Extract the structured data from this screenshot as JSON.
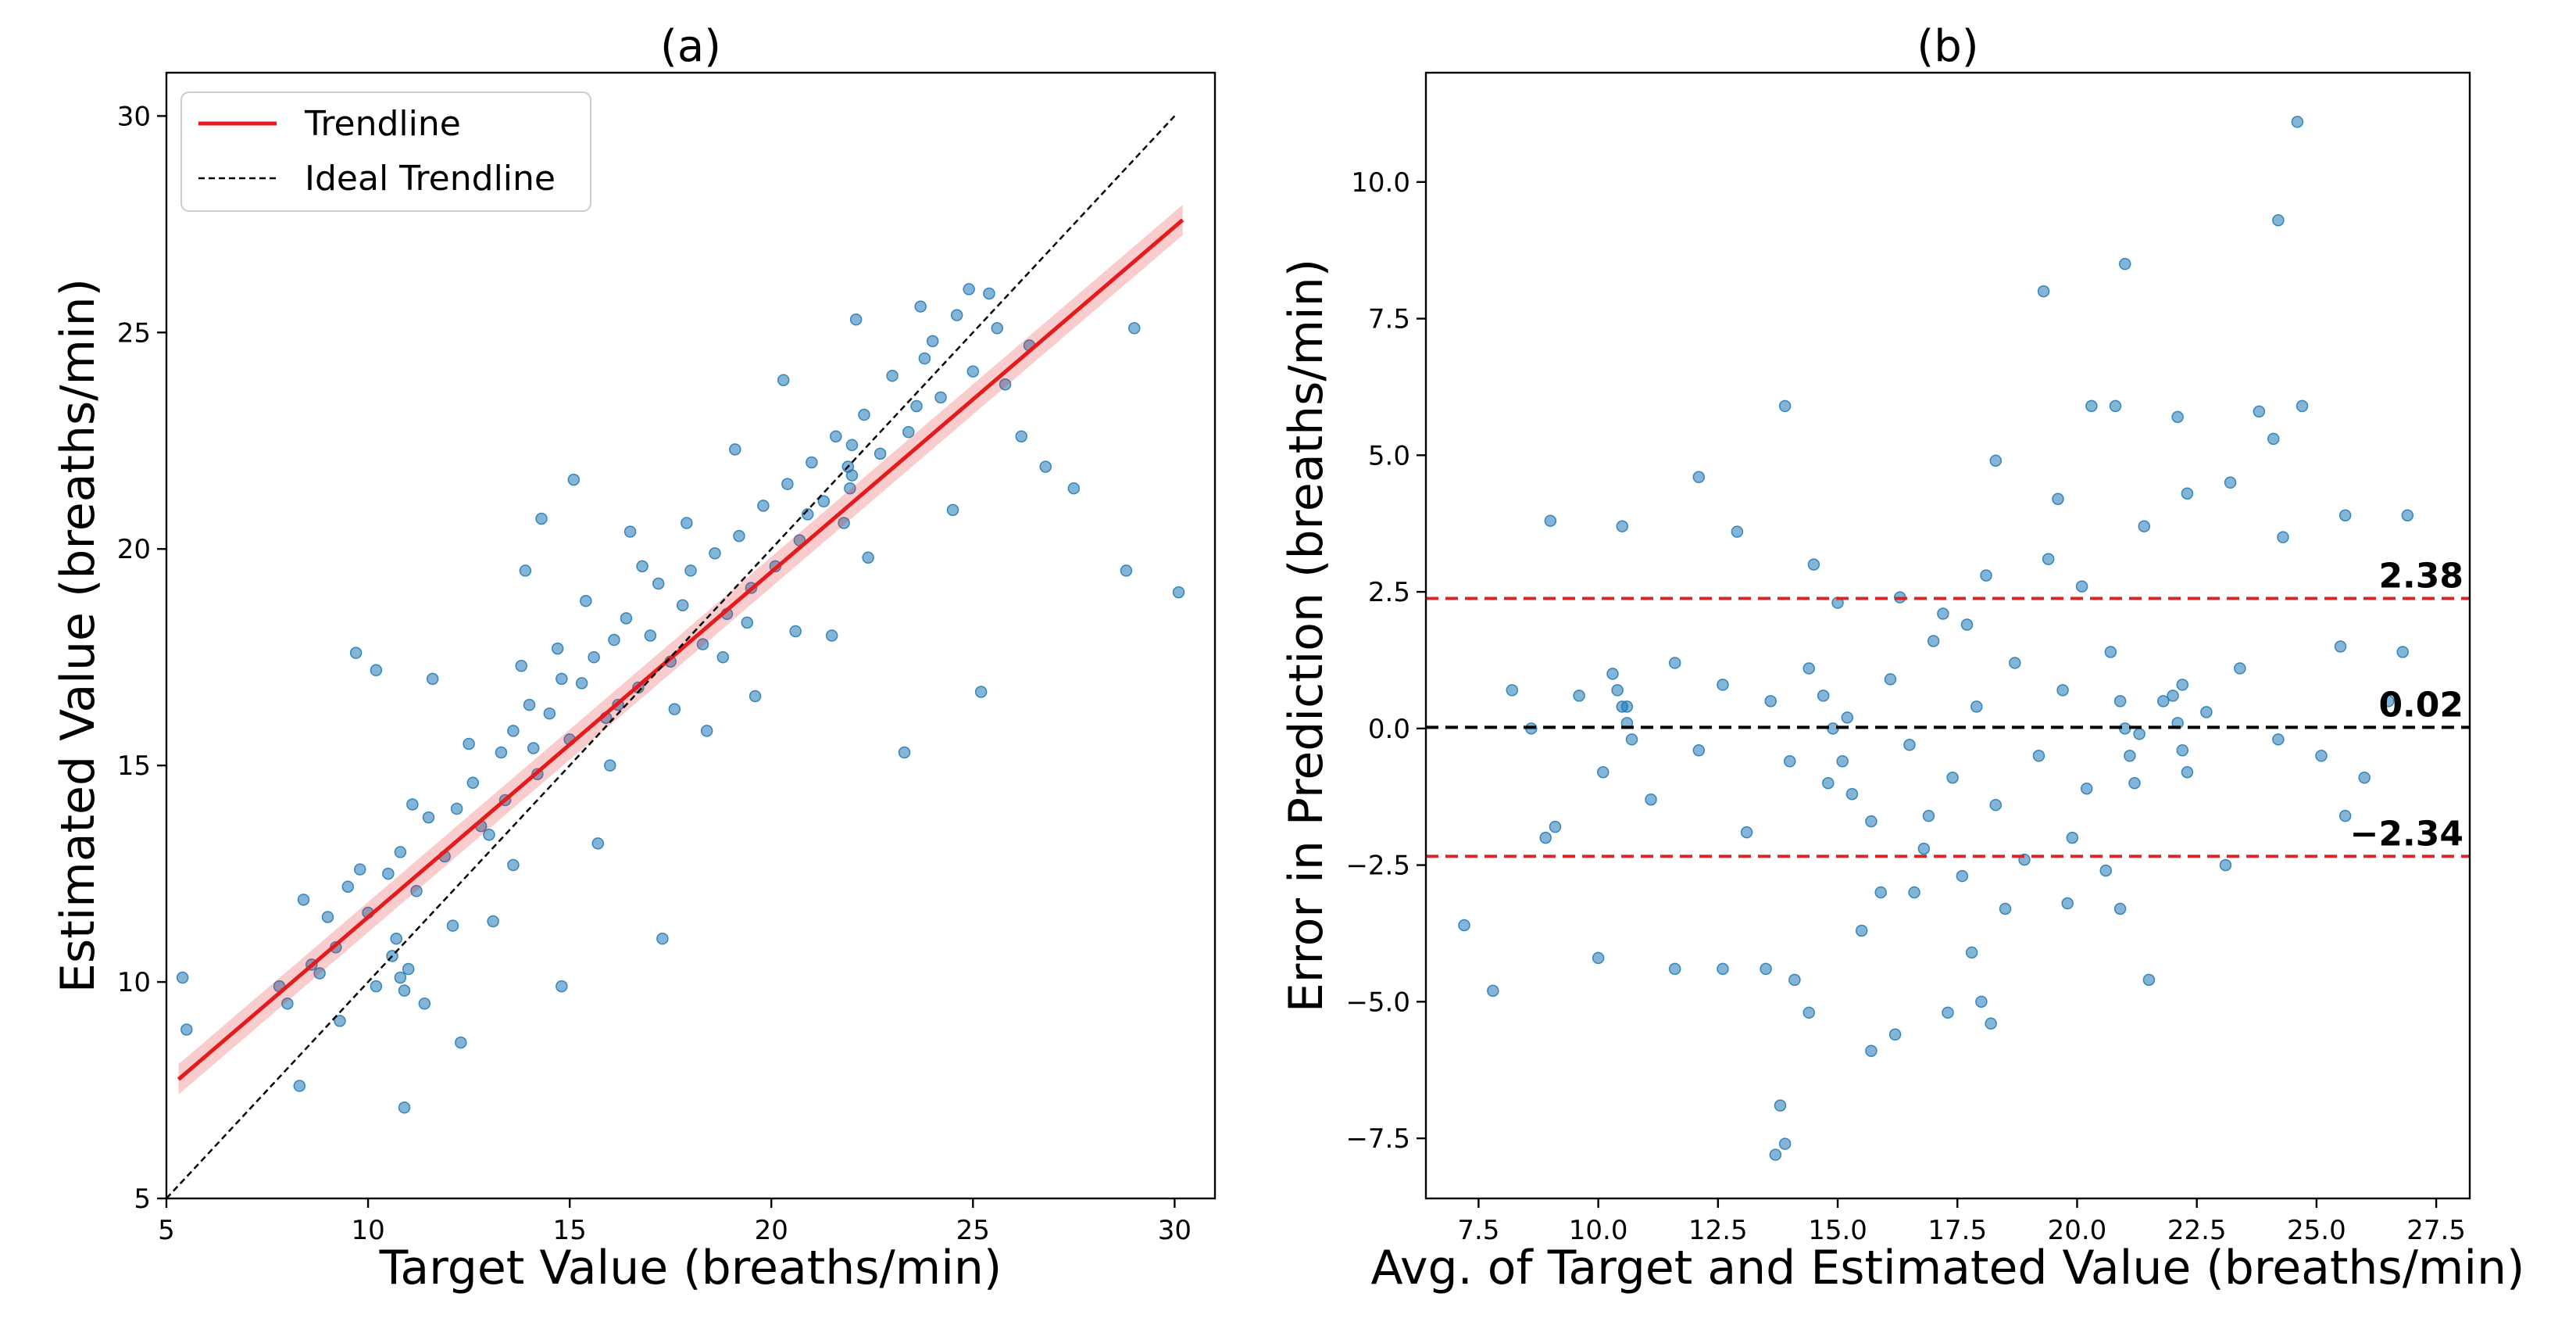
{
  "chart_data": [
    {
      "type": "scatter",
      "title": "(a)",
      "xlabel": "Target Value (breaths/min)",
      "ylabel": "Estimated Value (breaths/min)",
      "xlim": [
        5,
        31
      ],
      "ylim": [
        5,
        31
      ],
      "xticks": [
        5,
        10,
        15,
        20,
        25,
        30
      ],
      "yticks": [
        5,
        10,
        15,
        20,
        25,
        30
      ],
      "legend_position": "top-left",
      "point_color": "#1f77b4",
      "series": [
        {
          "name": "Trendline",
          "kind": "line",
          "color": "#e41a1c",
          "x": [
            5.3,
            30.2
          ],
          "y": [
            7.75,
            27.6
          ]
        },
        {
          "name": "Ideal Trendline",
          "kind": "dashed-line",
          "color": "#000000",
          "x": [
            5.0,
            30.0
          ],
          "y": [
            5.0,
            30.0
          ]
        }
      ],
      "points": [
        [
          5.4,
          10.1
        ],
        [
          5.5,
          8.9
        ],
        [
          8.3,
          7.6
        ],
        [
          8.0,
          9.5
        ],
        [
          8.6,
          10.4
        ],
        [
          9.2,
          10.8
        ],
        [
          9.0,
          11.5
        ],
        [
          9.5,
          12.2
        ],
        [
          10.0,
          11.6
        ],
        [
          10.2,
          9.9
        ],
        [
          10.5,
          12.5
        ],
        [
          10.8,
          13.0
        ],
        [
          11.0,
          10.3
        ],
        [
          11.2,
          12.1
        ],
        [
          11.5,
          13.8
        ],
        [
          11.9,
          12.9
        ],
        [
          12.2,
          14.0
        ],
        [
          12.6,
          14.6
        ],
        [
          13.0,
          13.4
        ],
        [
          13.3,
          15.3
        ],
        [
          13.6,
          15.8
        ],
        [
          14.0,
          16.4
        ],
        [
          14.2,
          14.8
        ],
        [
          14.5,
          16.2
        ],
        [
          14.8,
          17.0
        ],
        [
          15.0,
          15.6
        ],
        [
          15.3,
          16.9
        ],
        [
          15.6,
          17.5
        ],
        [
          15.9,
          16.1
        ],
        [
          16.1,
          17.9
        ],
        [
          16.4,
          18.4
        ],
        [
          16.7,
          16.8
        ],
        [
          17.0,
          18.0
        ],
        [
          17.2,
          19.2
        ],
        [
          17.5,
          17.4
        ],
        [
          17.8,
          18.7
        ],
        [
          18.0,
          19.5
        ],
        [
          18.3,
          17.8
        ],
        [
          18.6,
          19.9
        ],
        [
          18.9,
          18.5
        ],
        [
          19.2,
          20.3
        ],
        [
          19.5,
          19.1
        ],
        [
          19.8,
          21.0
        ],
        [
          20.1,
          19.6
        ],
        [
          20.4,
          21.5
        ],
        [
          20.7,
          20.2
        ],
        [
          21.0,
          22.0
        ],
        [
          21.3,
          21.1
        ],
        [
          21.6,
          22.6
        ],
        [
          22.0,
          21.7
        ],
        [
          22.3,
          23.1
        ],
        [
          22.7,
          22.2
        ],
        [
          23.0,
          24.0
        ],
        [
          23.4,
          22.7
        ],
        [
          23.8,
          24.4
        ],
        [
          24.2,
          23.5
        ],
        [
          24.6,
          25.4
        ],
        [
          25.0,
          24.1
        ],
        [
          25.4,
          25.9
        ],
        [
          25.8,
          23.8
        ],
        [
          26.2,
          22.6
        ],
        [
          26.8,
          21.9
        ],
        [
          27.5,
          21.4
        ],
        [
          28.8,
          19.5
        ],
        [
          29.0,
          25.1
        ],
        [
          30.1,
          19.0
        ],
        [
          25.2,
          16.7
        ],
        [
          23.3,
          15.3
        ],
        [
          21.5,
          18.0
        ],
        [
          19.6,
          16.6
        ],
        [
          12.3,
          8.6
        ],
        [
          10.9,
          7.1
        ],
        [
          9.7,
          17.6
        ],
        [
          10.2,
          17.2
        ],
        [
          11.6,
          17.0
        ],
        [
          13.9,
          19.5
        ],
        [
          14.3,
          20.7
        ],
        [
          15.1,
          21.6
        ],
        [
          17.3,
          11.0
        ],
        [
          14.8,
          9.9
        ],
        [
          13.1,
          11.4
        ],
        [
          22.1,
          25.3
        ],
        [
          23.7,
          25.6
        ],
        [
          26.4,
          24.7
        ],
        [
          24.9,
          26.0
        ],
        [
          20.3,
          23.9
        ],
        [
          19.1,
          22.3
        ],
        [
          16.5,
          20.4
        ],
        [
          18.4,
          15.8
        ],
        [
          20.6,
          18.1
        ],
        [
          22.4,
          19.8
        ],
        [
          24.5,
          20.9
        ],
        [
          15.7,
          13.2
        ],
        [
          13.6,
          12.7
        ],
        [
          12.1,
          11.3
        ],
        [
          11.4,
          9.5
        ],
        [
          10.6,
          10.6
        ],
        [
          10.7,
          11.0
        ],
        [
          10.8,
          10.1
        ],
        [
          10.9,
          9.8
        ],
        [
          16.0,
          15.0
        ],
        [
          16.2,
          16.4
        ],
        [
          17.6,
          16.3
        ],
        [
          18.8,
          17.5
        ],
        [
          19.4,
          18.3
        ],
        [
          17.9,
          20.6
        ],
        [
          16.8,
          19.6
        ],
        [
          15.4,
          18.8
        ],
        [
          14.7,
          17.7
        ],
        [
          14.1,
          15.4
        ],
        [
          13.4,
          14.2
        ],
        [
          12.8,
          13.6
        ],
        [
          21.8,
          20.6
        ],
        [
          21.9,
          21.9
        ],
        [
          22.0,
          22.4
        ],
        [
          21.95,
          21.4
        ],
        [
          23.6,
          23.3
        ],
        [
          24.0,
          24.8
        ],
        [
          25.6,
          25.1
        ],
        [
          20.9,
          20.8
        ],
        [
          9.3,
          9.1
        ],
        [
          8.8,
          10.2
        ],
        [
          7.8,
          9.9
        ],
        [
          8.4,
          11.9
        ],
        [
          9.8,
          12.6
        ],
        [
          11.1,
          14.1
        ],
        [
          12.5,
          15.5
        ],
        [
          13.8,
          17.3
        ]
      ]
    },
    {
      "type": "scatter",
      "title": "(b)",
      "xlabel": "Avg. of Target and Estimated Value (breaths/min)",
      "ylabel": "Error in Prediction (breaths/min)",
      "xlim": [
        6.4,
        28.2
      ],
      "ylim": [
        -8.6,
        12.0
      ],
      "xticks": [
        7.5,
        10.0,
        12.5,
        15.0,
        17.5,
        20.0,
        22.5,
        25.0,
        27.5
      ],
      "yticks": [
        -7.5,
        -5.0,
        -2.5,
        0.0,
        2.5,
        5.0,
        7.5,
        10.0
      ],
      "point_color": "#1f77b4",
      "reference_lines": [
        {
          "label": "2.38",
          "value": 2.38,
          "color": "#d62728",
          "style": "dashed"
        },
        {
          "label": "0.02",
          "value": 0.02,
          "color": "#000000",
          "style": "dashed"
        },
        {
          "label": "−2.34",
          "value": -2.34,
          "color": "#d62728",
          "style": "dashed"
        }
      ],
      "points": [
        [
          24.6,
          11.1
        ],
        [
          24.2,
          9.3
        ],
        [
          19.3,
          8.0
        ],
        [
          21.0,
          8.5
        ],
        [
          23.8,
          5.8
        ],
        [
          24.1,
          5.3
        ],
        [
          24.7,
          5.9
        ],
        [
          22.1,
          5.7
        ],
        [
          20.3,
          5.9
        ],
        [
          20.8,
          5.9
        ],
        [
          13.9,
          5.9
        ],
        [
          12.1,
          4.6
        ],
        [
          9.0,
          3.8
        ],
        [
          10.5,
          3.7
        ],
        [
          12.9,
          3.6
        ],
        [
          14.5,
          3.0
        ],
        [
          26.9,
          3.9
        ],
        [
          25.6,
          3.9
        ],
        [
          24.3,
          3.5
        ],
        [
          23.2,
          4.5
        ],
        [
          22.3,
          4.3
        ],
        [
          21.4,
          3.7
        ],
        [
          18.3,
          4.9
        ],
        [
          19.6,
          4.2
        ],
        [
          7.2,
          -3.6
        ],
        [
          7.8,
          -4.8
        ],
        [
          10.0,
          -4.2
        ],
        [
          11.6,
          -4.4
        ],
        [
          12.6,
          -4.4
        ],
        [
          13.5,
          -4.4
        ],
        [
          14.1,
          -4.6
        ],
        [
          14.4,
          -5.2
        ],
        [
          13.7,
          -7.8
        ],
        [
          13.9,
          -7.6
        ],
        [
          13.8,
          -6.9
        ],
        [
          15.7,
          -5.9
        ],
        [
          16.2,
          -5.6
        ],
        [
          17.3,
          -5.2
        ],
        [
          18.0,
          -5.0
        ],
        [
          18.2,
          -5.4
        ],
        [
          21.5,
          -4.6
        ],
        [
          15.5,
          -3.7
        ],
        [
          16.6,
          -3.0
        ],
        [
          17.8,
          -4.1
        ],
        [
          19.8,
          -3.2
        ],
        [
          20.9,
          -3.3
        ],
        [
          23.1,
          -2.5
        ],
        [
          25.6,
          -1.6
        ],
        [
          26.0,
          -0.9
        ],
        [
          25.1,
          -0.5
        ],
        [
          26.5,
          0.5
        ],
        [
          26.8,
          1.4
        ],
        [
          25.5,
          1.5
        ],
        [
          24.2,
          -0.2
        ],
        [
          23.4,
          1.1
        ],
        [
          22.7,
          0.3
        ],
        [
          22.2,
          0.8
        ],
        [
          21.8,
          0.5
        ],
        [
          21.3,
          -0.1
        ],
        [
          20.7,
          1.4
        ],
        [
          20.2,
          -1.1
        ],
        [
          19.7,
          0.7
        ],
        [
          19.2,
          -0.5
        ],
        [
          18.7,
          1.2
        ],
        [
          18.3,
          -1.4
        ],
        [
          17.9,
          0.4
        ],
        [
          17.4,
          -0.9
        ],
        [
          17.0,
          1.6
        ],
        [
          16.5,
          -0.3
        ],
        [
          16.1,
          0.9
        ],
        [
          15.7,
          -1.7
        ],
        [
          15.2,
          0.2
        ],
        [
          14.8,
          -1.0
        ],
        [
          14.4,
          1.1
        ],
        [
          14.0,
          -0.6
        ],
        [
          13.6,
          0.5
        ],
        [
          13.1,
          -1.9
        ],
        [
          12.6,
          0.8
        ],
        [
          12.1,
          -0.4
        ],
        [
          11.6,
          1.2
        ],
        [
          11.1,
          -1.3
        ],
        [
          10.6,
          0.4
        ],
        [
          10.1,
          -0.8
        ],
        [
          9.6,
          0.6
        ],
        [
          9.1,
          -1.8
        ],
        [
          8.6,
          0.0
        ],
        [
          8.2,
          0.7
        ],
        [
          8.9,
          -2.0
        ],
        [
          10.3,
          1.0
        ],
        [
          10.4,
          0.7
        ],
        [
          10.5,
          0.4
        ],
        [
          10.6,
          0.1
        ],
        [
          10.7,
          -0.2
        ],
        [
          14.7,
          0.6
        ],
        [
          14.9,
          0.0
        ],
        [
          15.1,
          -0.6
        ],
        [
          15.3,
          -1.2
        ],
        [
          20.9,
          0.5
        ],
        [
          21.0,
          0.0
        ],
        [
          21.1,
          -0.5
        ],
        [
          21.2,
          -1.0
        ],
        [
          22.0,
          0.6
        ],
        [
          22.1,
          0.1
        ],
        [
          22.2,
          -0.4
        ],
        [
          22.3,
          -0.8
        ],
        [
          17.2,
          2.1
        ],
        [
          18.1,
          2.8
        ],
        [
          19.4,
          3.1
        ],
        [
          16.3,
          2.4
        ],
        [
          15.0,
          2.3
        ],
        [
          20.1,
          2.6
        ],
        [
          18.9,
          -2.4
        ],
        [
          17.6,
          -2.7
        ],
        [
          16.8,
          -2.2
        ],
        [
          19.9,
          -2.0
        ],
        [
          20.6,
          -2.6
        ],
        [
          15.9,
          -3.0
        ],
        [
          18.5,
          -3.3
        ],
        [
          17.7,
          1.9
        ],
        [
          16.9,
          -1.6
        ]
      ]
    }
  ]
}
